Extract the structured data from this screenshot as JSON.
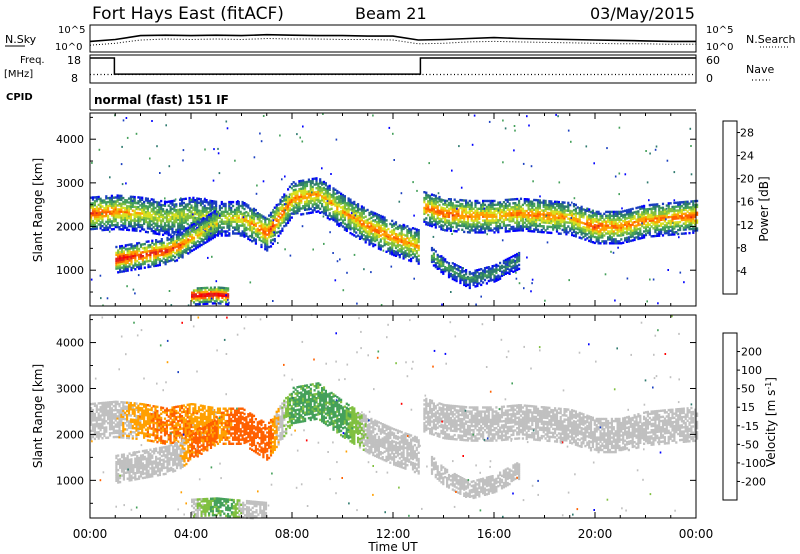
{
  "header": {
    "station": "Fort Hays East (fitACF)",
    "beam": "Beam 21",
    "date": "03/May/2015"
  },
  "top_panels": {
    "nsky_label": "N.Sky",
    "nsearch_label": "N.Search",
    "noise_ticks": [
      "10^5",
      "10^0"
    ],
    "freq_label": "Freq.",
    "freq_unit": "[MHz]",
    "freq_ticks": [
      "18",
      "8"
    ],
    "nave_label": "Nave",
    "nave_ticks": [
      "60",
      "0"
    ],
    "cpid_label": "CPID",
    "cpid_text": "normal (fast) 151 IF"
  },
  "colors": {
    "power": [
      "#0000ff",
      "#1a3fc0",
      "#2e7a6e",
      "#44a05a",
      "#80c040",
      "#d8e020",
      "#ffa000",
      "#ff6000",
      "#e02020",
      "#ff0000"
    ],
    "velocity": [
      "#ff0000",
      "#ff6000",
      "#ffa000",
      "#c0c0c0",
      "#c0c0c0",
      "#80c040",
      "#44a05a",
      "#2e7a6e",
      "#1a3fc0",
      "#0000ff"
    ],
    "ground_gray": "#c0c0c0"
  },
  "chart_data": [
    {
      "type": "line",
      "title": "N.Sky / N.Search",
      "x": [
        "00:00",
        "01:00",
        "02:00",
        "03:00",
        "04:00",
        "05:00",
        "06:00",
        "07:00",
        "08:00",
        "09:00",
        "10:00",
        "11:00",
        "12:00",
        "13:00",
        "14:00",
        "15:00",
        "16:00",
        "17:00",
        "18:00",
        "19:00",
        "20:00",
        "21:00",
        "22:00",
        "23:00",
        "24:00"
      ],
      "series": [
        {
          "name": "N.Sky",
          "values": [
            2.0,
            2.4,
            3.2,
            3.3,
            3.2,
            3.3,
            3.2,
            3.4,
            3.3,
            3.2,
            3.2,
            3.1,
            3.1,
            2.3,
            2.4,
            2.6,
            2.8,
            2.6,
            2.5,
            2.4,
            2.3,
            2.2,
            2.1,
            2.0,
            2.0
          ]
        },
        {
          "name": "N.Search",
          "values": [
            1.2,
            1.6,
            2.3,
            2.5,
            2.4,
            2.5,
            2.4,
            2.6,
            2.5,
            2.5,
            2.4,
            2.4,
            2.3,
            1.5,
            1.6,
            1.9,
            2.0,
            1.9,
            1.8,
            1.7,
            1.6,
            1.5,
            1.5,
            1.4,
            1.4
          ]
        }
      ],
      "ylim": [
        0,
        5
      ],
      "scale": "log",
      "ytick_labels": [
        "10^0",
        "10^5"
      ]
    },
    {
      "type": "line",
      "title": "Freq. / Nave",
      "x": [
        "00:00",
        "01:00",
        "02:00",
        "13:00",
        "24:00"
      ],
      "series": [
        {
          "name": "Freq.",
          "values": [
            18,
            10.7,
            10.7,
            18,
            18
          ]
        },
        {
          "name": "Nave",
          "values": [
            15,
            15,
            15,
            15,
            15
          ]
        }
      ],
      "ylim_freq": [
        8,
        18
      ],
      "ylim_nave": [
        0,
        60
      ],
      "step_changes": [
        {
          "time": "00:58",
          "from": 18,
          "to": 10.7
        },
        {
          "time": "13:05",
          "from": 10.7,
          "to": 18
        }
      ]
    },
    {
      "type": "heatmap",
      "title": "Power",
      "xlabel": "",
      "ylabel": "Slant Range [km]",
      "xlim": [
        "00:00",
        "24:00"
      ],
      "ylim": [
        180,
        4600
      ],
      "xticks": [
        "00:00",
        "04:00",
        "08:00",
        "12:00",
        "16:00",
        "20:00",
        "00:00"
      ],
      "yticks": [
        1000,
        2000,
        3000,
        4000
      ],
      "colorbar": {
        "label": "Power [dB]",
        "ticks": [
          4,
          8,
          12,
          16,
          20,
          24,
          28
        ],
        "range": [
          0,
          30
        ]
      },
      "bands": [
        {
          "t": [
            0.0,
            1.0,
            2.0,
            3.0,
            4.0,
            5.0,
            6.0,
            7.0,
            8.0,
            9.0,
            10.0,
            11.0,
            12.0,
            13.0
          ],
          "center": [
            2300,
            2350,
            2300,
            2200,
            2300,
            2200,
            2200,
            1850,
            2650,
            2750,
            2350,
            2000,
            1750,
            1550
          ],
          "width": 400,
          "peak_db": [
            24,
            22,
            18,
            16,
            16,
            14,
            18,
            24,
            22,
            20,
            20,
            22,
            22,
            20
          ]
        },
        {
          "t": [
            1.0,
            2.0,
            3.0,
            3.5,
            4.0,
            5.0
          ],
          "center": [
            1250,
            1350,
            1450,
            1550,
            1750,
            2100
          ],
          "width": 300,
          "peak_db": [
            28,
            26,
            26,
            24,
            20,
            18
          ]
        },
        {
          "t": [
            4.0,
            5.0,
            5.5
          ],
          "center": [
            420,
            450,
            420
          ],
          "width": 200,
          "peak_db": [
            30,
            30,
            28
          ]
        },
        {
          "t": [
            13.2,
            14.0,
            15.0,
            16.0,
            17.0,
            18.0,
            19.0,
            20.0,
            21.0,
            22.0,
            23.0,
            24.0
          ],
          "center": [
            2450,
            2300,
            2250,
            2250,
            2300,
            2250,
            2200,
            2000,
            2000,
            2150,
            2200,
            2250
          ],
          "width": 380,
          "peak_db": [
            22,
            24,
            22,
            20,
            22,
            22,
            20,
            24,
            22,
            22,
            22,
            24
          ]
        },
        {
          "t": [
            13.5,
            14.0,
            15.0,
            16.0,
            17.0
          ],
          "center": [
            1350,
            1100,
            800,
            950,
            1250
          ],
          "width": 200,
          "peak_db": [
            14,
            12,
            10,
            10,
            8
          ]
        }
      ]
    },
    {
      "type": "heatmap",
      "title": "Velocity",
      "xlabel": "Time UT",
      "ylabel": "Slant Range [km]",
      "xlim": [
        "00:00",
        "24:00"
      ],
      "ylim": [
        180,
        4600
      ],
      "xticks": [
        "00:00",
        "04:00",
        "08:00",
        "12:00",
        "16:00",
        "20:00",
        "00:00"
      ],
      "yticks": [
        1000,
        2000,
        3000,
        4000
      ],
      "colorbar": {
        "label": "Velocity [m s^-1]",
        "ticks": [
          200,
          100,
          50,
          15,
          -15,
          -50,
          -100,
          -200
        ],
        "range": [
          -250,
          250
        ]
      },
      "bands": [
        {
          "t": [
            0.0,
            1.0,
            2.0,
            3.0,
            4.0,
            5.0,
            6.0,
            7.0,
            8.0,
            9.0,
            10.0,
            11.0,
            12.0,
            13.0
          ],
          "center": [
            2300,
            2350,
            2300,
            2200,
            2300,
            2200,
            2200,
            1850,
            2650,
            2750,
            2350,
            2000,
            1750,
            1550
          ],
          "width": 400,
          "vel": [
            0,
            0,
            -30,
            -60,
            -40,
            -30,
            -80,
            -70,
            60,
            60,
            60,
            0,
            0,
            0
          ]
        },
        {
          "t": [
            1.0,
            2.0,
            3.0,
            3.5,
            4.0,
            5.0
          ],
          "center": [
            1250,
            1350,
            1450,
            1550,
            1750,
            2100
          ],
          "width": 300,
          "vel": [
            0,
            0,
            0,
            0,
            -60,
            -60
          ]
        },
        {
          "t": [
            4.0,
            5.0,
            5.5,
            6.0,
            7.0
          ],
          "center": [
            420,
            450,
            420,
            400,
            350
          ],
          "width": 200,
          "vel": [
            0,
            60,
            60,
            0,
            0
          ]
        },
        {
          "t": [
            13.2,
            14.0,
            15.0,
            16.0,
            17.0,
            18.0,
            19.0,
            20.0,
            21.0,
            22.0,
            23.0,
            24.0
          ],
          "center": [
            2450,
            2300,
            2250,
            2250,
            2300,
            2250,
            2200,
            2000,
            2000,
            2150,
            2200,
            2250
          ],
          "width": 380,
          "vel": [
            0,
            0,
            0,
            0,
            0,
            0,
            0,
            0,
            0,
            0,
            0,
            0
          ]
        },
        {
          "t": [
            13.5,
            14.0,
            15.0,
            16.0,
            17.0
          ],
          "center": [
            1350,
            1100,
            800,
            950,
            1250
          ],
          "width": 200,
          "vel": [
            0,
            0,
            0,
            0,
            0
          ]
        }
      ]
    }
  ]
}
